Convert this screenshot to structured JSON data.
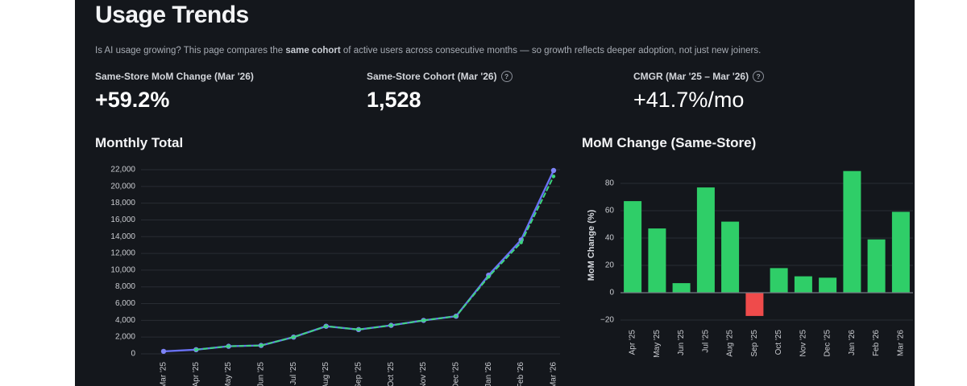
{
  "page": {
    "title": "Usage Trends",
    "subtitle_pre": "Is AI usage growing? This page compares the ",
    "subtitle_bold": "same cohort",
    "subtitle_post": " of active users across consecutive months — so growth reflects deeper adoption, not just new joiners."
  },
  "kpis": [
    {
      "label": "Same-Store MoM Change (Mar '26)",
      "value": "+59.2%",
      "has_help_icon": false
    },
    {
      "label": "Same-Store Cohort (Mar '26)",
      "value": "1,528",
      "has_help_icon": true,
      "help_glyph": "?"
    },
    {
      "label": "CMGR (Mar '25 – Mar '26)",
      "value": "+41.7%/mo",
      "has_help_icon": true,
      "help_glyph": "?"
    }
  ],
  "colors": {
    "panel_bg": "#14171c",
    "grid": "#282c33",
    "zero_line": "#757a82",
    "tick_text": "#caccd1",
    "line_total": "#6971f4",
    "line_total_marker": "#7e84f7",
    "line_cohort": "#3dd57e",
    "bar_positive": "#2fce68",
    "bar_negative": "#ef4b4b"
  },
  "chart_data": [
    {
      "type": "line",
      "title": "Monthly Total",
      "x": [
        "Mar '25",
        "Apr '25",
        "May '25",
        "Jun '25",
        "Jul '25",
        "Aug '25",
        "Sep '25",
        "Oct '25",
        "Nov '25",
        "Dec '25",
        "Jan '26",
        "Feb '26",
        "Mar '26"
      ],
      "series": [
        {
          "name": "monthly-total",
          "style": "solid",
          "color": "#6971f4",
          "marker_color": "#7e84f7",
          "values": [
            300,
            500,
            900,
            1000,
            2000,
            3300,
            2900,
            3400,
            4000,
            4500,
            9400,
            13600,
            21900
          ]
        },
        {
          "name": "same-store-cohort",
          "style": "dashed",
          "color": "#3dd57e",
          "marker_color": "#3dd57e",
          "values": [
            null,
            500,
            900,
            1000,
            2000,
            3300,
            2900,
            3400,
            4000,
            4500,
            9200,
            13300,
            21200
          ]
        }
      ],
      "ylim": [
        0,
        22000
      ],
      "ytick_step": 2000,
      "grid": true,
      "legend": "none"
    },
    {
      "type": "bar",
      "title": "MoM Change (Same-Store)",
      "ylabel": "MoM Change (%)",
      "categories": [
        "Apr '25",
        "May '25",
        "Jun '25",
        "Jul '25",
        "Aug '25",
        "Sep '25",
        "Oct '25",
        "Nov '25",
        "Dec '25",
        "Jan '26",
        "Feb '26",
        "Mar '26"
      ],
      "values": [
        67,
        47,
        7,
        77,
        52,
        -17,
        18,
        12,
        11,
        89,
        39,
        59.2
      ],
      "ylim": [
        -20,
        90
      ],
      "yticks": [
        -20,
        0,
        20,
        40,
        60,
        80
      ],
      "grid": true
    }
  ]
}
